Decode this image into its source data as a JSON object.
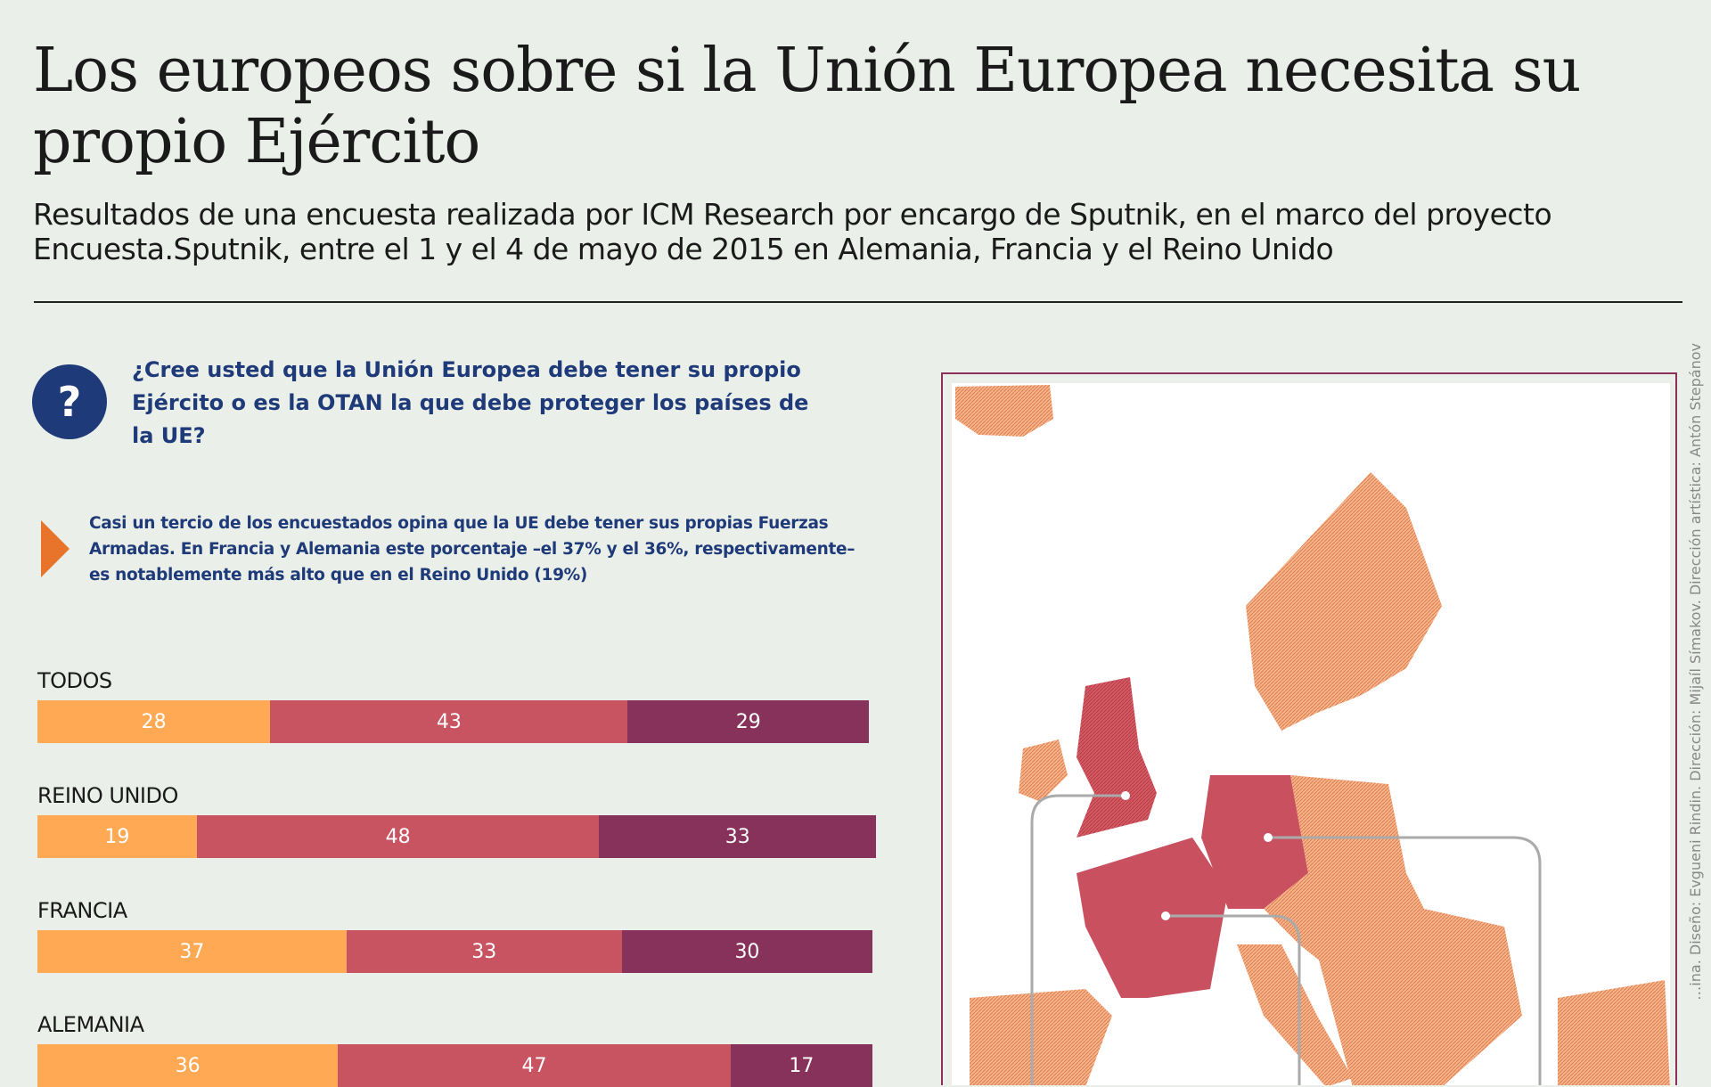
{
  "header": {
    "title": "Los europeos sobre si la Unión Europea necesita su propio Ejército",
    "subtitle": "Resultados de una encuesta realizada por ICM Research por encargo de Sputnik, en el marco del proyecto Encuesta.Sputnik, entre el 1 y el 4 de mayo de 2015 en Alemania, Francia y el Reino Unido"
  },
  "question": {
    "icon": "?",
    "text": "¿Cree usted que la Unión Europea debe tener su propio Ejército o es la OTAN la que debe proteger los países de la UE?"
  },
  "note": "Casi un tercio de los encuestados opina que la UE debe tener sus propias Fuerzas Armadas. En Francia y Alemania este porcentaje –el 37% y el 36%, respectivamente– es notablemente más alto que en el Reino Unido (19%)",
  "credit": "…ina. Diseño: Evgueni Rindin. Dirección: Mijaíl Símakov. Dirección artística: Antón Stepánov",
  "colors": {
    "series1": "#ffa955",
    "series2": "#c85462",
    "series3": "#87325a",
    "accent": "#1f3a78",
    "arrow": "#e8742c"
  },
  "chart_data": {
    "type": "bar",
    "stacked": true,
    "orientation": "horizontal",
    "categories": [
      "TODOS",
      "REINO UNIDO",
      "FRANCIA",
      "ALEMANIA"
    ],
    "series": [
      {
        "name": "",
        "values": [
          28,
          19,
          37,
          36
        ]
      },
      {
        "name": "",
        "values": [
          43,
          48,
          33,
          47
        ]
      },
      {
        "name": "",
        "values": [
          29,
          33,
          30,
          17
        ]
      }
    ],
    "xlim": [
      0,
      100
    ]
  }
}
